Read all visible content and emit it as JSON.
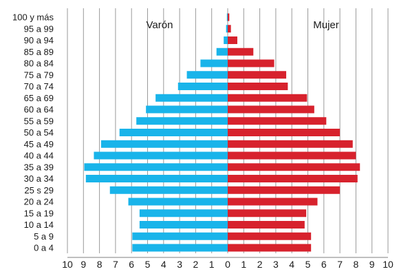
{
  "chart_data": {
    "type": "bar",
    "orientation": "horizontal",
    "subtype": "population-pyramid",
    "categories": [
      "100 y más",
      "95 a 99",
      "90 a 94",
      "85 a 89",
      "80 a 84",
      "75 a 79",
      "70 a 74",
      "65 a 69",
      "60 a 64",
      "55 a 59",
      "50 a 54",
      "45 a 49",
      "40 a 44",
      "35 a 39",
      "30 a 34",
      "25 s 29",
      "20 a 24",
      "15 a 19",
      "10 a 14",
      "5 a 9",
      "0 a 4"
    ],
    "series": [
      {
        "name": "Varón",
        "color": "#19b4ea",
        "side": "left",
        "values": [
          0.05,
          0.1,
          0.25,
          0.7,
          1.7,
          2.55,
          3.1,
          4.5,
          5.1,
          5.7,
          6.75,
          7.9,
          8.35,
          8.95,
          8.85,
          7.35,
          6.2,
          5.5,
          5.5,
          5.95,
          5.95
        ]
      },
      {
        "name": "Mujer",
        "color": "#d7222d",
        "side": "right",
        "values": [
          0.1,
          0.2,
          0.6,
          1.6,
          2.9,
          3.65,
          3.75,
          4.95,
          5.4,
          6.15,
          7.0,
          7.8,
          8.0,
          8.25,
          8.1,
          7.0,
          5.6,
          4.9,
          4.8,
          5.2,
          5.2
        ]
      }
    ],
    "xticks": [
      "10",
      "9",
      "8",
      "7",
      "6",
      "5",
      "4",
      "3",
      "2",
      "1",
      "0",
      "1",
      "2",
      "3",
      "4",
      "5",
      "6",
      "7",
      "8",
      "9",
      "10"
    ],
    "xlim": [
      -10,
      10
    ],
    "grid": true,
    "legend": "inline-top"
  }
}
